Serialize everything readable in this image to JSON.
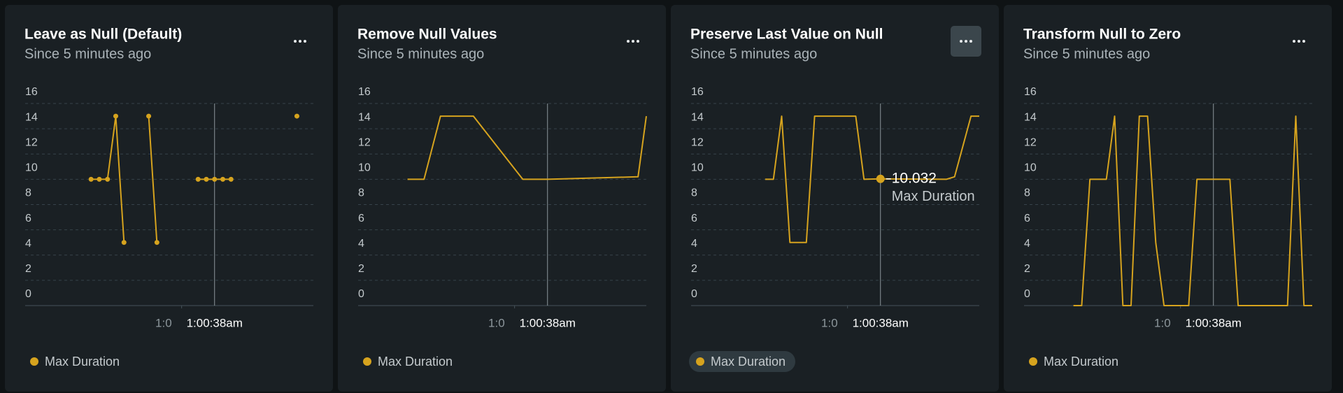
{
  "chart_data": [
    {
      "type": "line",
      "title": "Leave as Null (Default)",
      "subtitle": "Since 5 minutes ago",
      "x": [
        8,
        9,
        10,
        11,
        12,
        13,
        15,
        16,
        17,
        21,
        22,
        23,
        24,
        25,
        26,
        33
      ],
      "series": [
        {
          "name": "Max Duration",
          "color": "#d6a31e",
          "values": [
            10,
            10,
            10,
            15,
            5,
            null,
            15,
            5,
            null,
            10,
            10,
            10,
            10,
            10,
            null,
            15
          ]
        }
      ],
      "markers": true,
      "xlim": [
        0,
        35
      ],
      "xticks": [
        {
          "value": 19,
          "label": "1:0"
        },
        {
          "value": 23,
          "label": "1:00:38am"
        }
      ],
      "ylim": [
        0,
        16
      ],
      "yticks": [
        0,
        2,
        4,
        6,
        8,
        10,
        12,
        14,
        16
      ],
      "grid": true,
      "legend": "bottom-left"
    },
    {
      "type": "line",
      "title": "Remove Null Values",
      "subtitle": "Since 5 minutes ago",
      "x": [
        6,
        8,
        10,
        14,
        20,
        23,
        34,
        35
      ],
      "series": [
        {
          "name": "Max Duration",
          "color": "#d6a31e",
          "values": [
            10,
            10,
            15,
            15,
            10,
            10,
            10.2,
            15
          ]
        }
      ],
      "markers": false,
      "xlim": [
        0,
        35
      ],
      "xticks": [
        {
          "value": 19,
          "label": "1:0"
        },
        {
          "value": 23,
          "label": "1:00:38am"
        }
      ],
      "ylim": [
        0,
        16
      ],
      "yticks": [
        0,
        2,
        4,
        6,
        8,
        10,
        12,
        14,
        16
      ],
      "grid": true,
      "legend": "bottom-left"
    },
    {
      "type": "line",
      "title": "Preserve Last Value on Null",
      "subtitle": "Since 5 minutes ago",
      "x": [
        9,
        10,
        11,
        12,
        14,
        15,
        20,
        21,
        23,
        31,
        32,
        34,
        35
      ],
      "series": [
        {
          "name": "Max Duration",
          "color": "#d6a31e",
          "values": [
            10,
            10,
            15,
            5,
            5,
            15,
            15,
            10,
            10.032,
            10,
            10.2,
            15,
            15
          ]
        }
      ],
      "markers": false,
      "xlim": [
        0,
        35
      ],
      "xticks": [
        {
          "value": 19,
          "label": "1:0"
        },
        {
          "value": 23,
          "label": "1:00:38am"
        }
      ],
      "ylim": [
        0,
        16
      ],
      "yticks": [
        0,
        2,
        4,
        6,
        8,
        10,
        12,
        14,
        16
      ],
      "grid": true,
      "legend": "bottom-left"
    },
    {
      "type": "line",
      "title": "Transform Null to Zero",
      "subtitle": "Since 5 minutes ago",
      "x": [
        6,
        7,
        8,
        9,
        10,
        11,
        12,
        13,
        14,
        15,
        16,
        17,
        18,
        19,
        20,
        21,
        22,
        23,
        24,
        25,
        26,
        27,
        28,
        29,
        30,
        31,
        32,
        33,
        34,
        35
      ],
      "series": [
        {
          "name": "Max Duration",
          "color": "#d6a31e",
          "values": [
            0,
            0,
            10,
            10,
            10,
            15,
            0,
            0,
            15,
            15,
            5,
            0,
            0,
            0,
            0,
            10,
            10,
            10,
            10,
            10,
            0,
            0,
            0,
            0,
            0,
            0,
            0,
            15,
            0,
            0
          ]
        }
      ],
      "markers": false,
      "xlim": [
        0,
        35
      ],
      "xticks": [
        {
          "value": 19,
          "label": "1:0"
        },
        {
          "value": 23,
          "label": "1:00:38am"
        }
      ],
      "ylim": [
        0,
        16
      ],
      "yticks": [
        0,
        2,
        4,
        6,
        8,
        10,
        12,
        14,
        16
      ],
      "grid": true,
      "legend": "bottom-left"
    }
  ]
}
